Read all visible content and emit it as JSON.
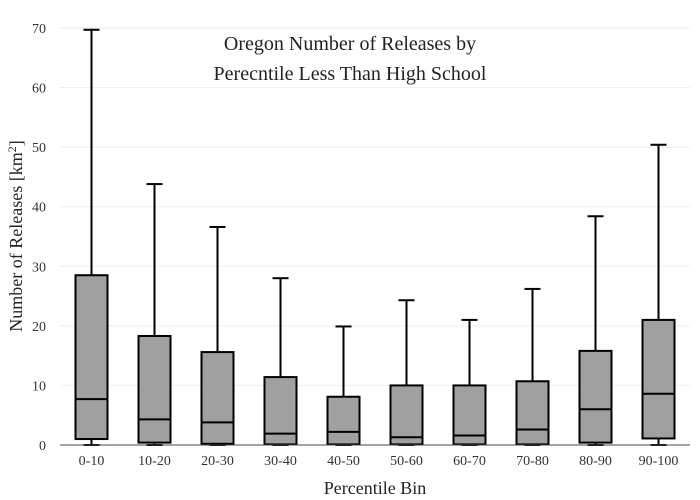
{
  "chart_data": {
    "type": "box",
    "title_lines": [
      "Oregon Number of Releases by",
      "Perecntile Less Than High School"
    ],
    "xlabel": "Percentile Bin",
    "ylabel": "Number of Releases  [km",
    "ylabel_superscript": "2",
    "ylabel_suffix": "]",
    "ylim": [
      0,
      70
    ],
    "yticks": [
      0,
      10,
      20,
      30,
      40,
      50,
      60,
      70
    ],
    "grid": true,
    "categories": [
      "0-10",
      "10-20",
      "20-30",
      "30-40",
      "40-50",
      "50-60",
      "60-70",
      "70-80",
      "80-90",
      "90-100"
    ],
    "boxes": [
      {
        "min": 0,
        "q1": 1.0,
        "median": 7.7,
        "q3": 28.5,
        "max": 69.7
      },
      {
        "min": 0,
        "q1": 0.4,
        "median": 4.3,
        "q3": 18.3,
        "max": 43.8
      },
      {
        "min": 0,
        "q1": 0.2,
        "median": 3.8,
        "q3": 15.6,
        "max": 36.6
      },
      {
        "min": 0,
        "q1": 0.1,
        "median": 1.9,
        "q3": 11.4,
        "max": 28.0
      },
      {
        "min": 0,
        "q1": 0.1,
        "median": 2.2,
        "q3": 8.1,
        "max": 19.9
      },
      {
        "min": 0,
        "q1": 0.1,
        "median": 1.3,
        "q3": 10.0,
        "max": 24.3
      },
      {
        "min": 0,
        "q1": 0.1,
        "median": 1.6,
        "q3": 10.0,
        "max": 21.0
      },
      {
        "min": 0,
        "q1": 0.1,
        "median": 2.6,
        "q3": 10.7,
        "max": 26.2
      },
      {
        "min": 0,
        "q1": 0.4,
        "median": 6.0,
        "q3": 15.8,
        "max": 38.4
      },
      {
        "min": 0,
        "q1": 1.1,
        "median": 8.6,
        "q3": 21.0,
        "max": 50.4
      }
    ],
    "colors": {
      "box_fill": "#a0a0a0",
      "stroke": "#000000",
      "grid": "#eeeeee",
      "axis": "#444444"
    }
  }
}
